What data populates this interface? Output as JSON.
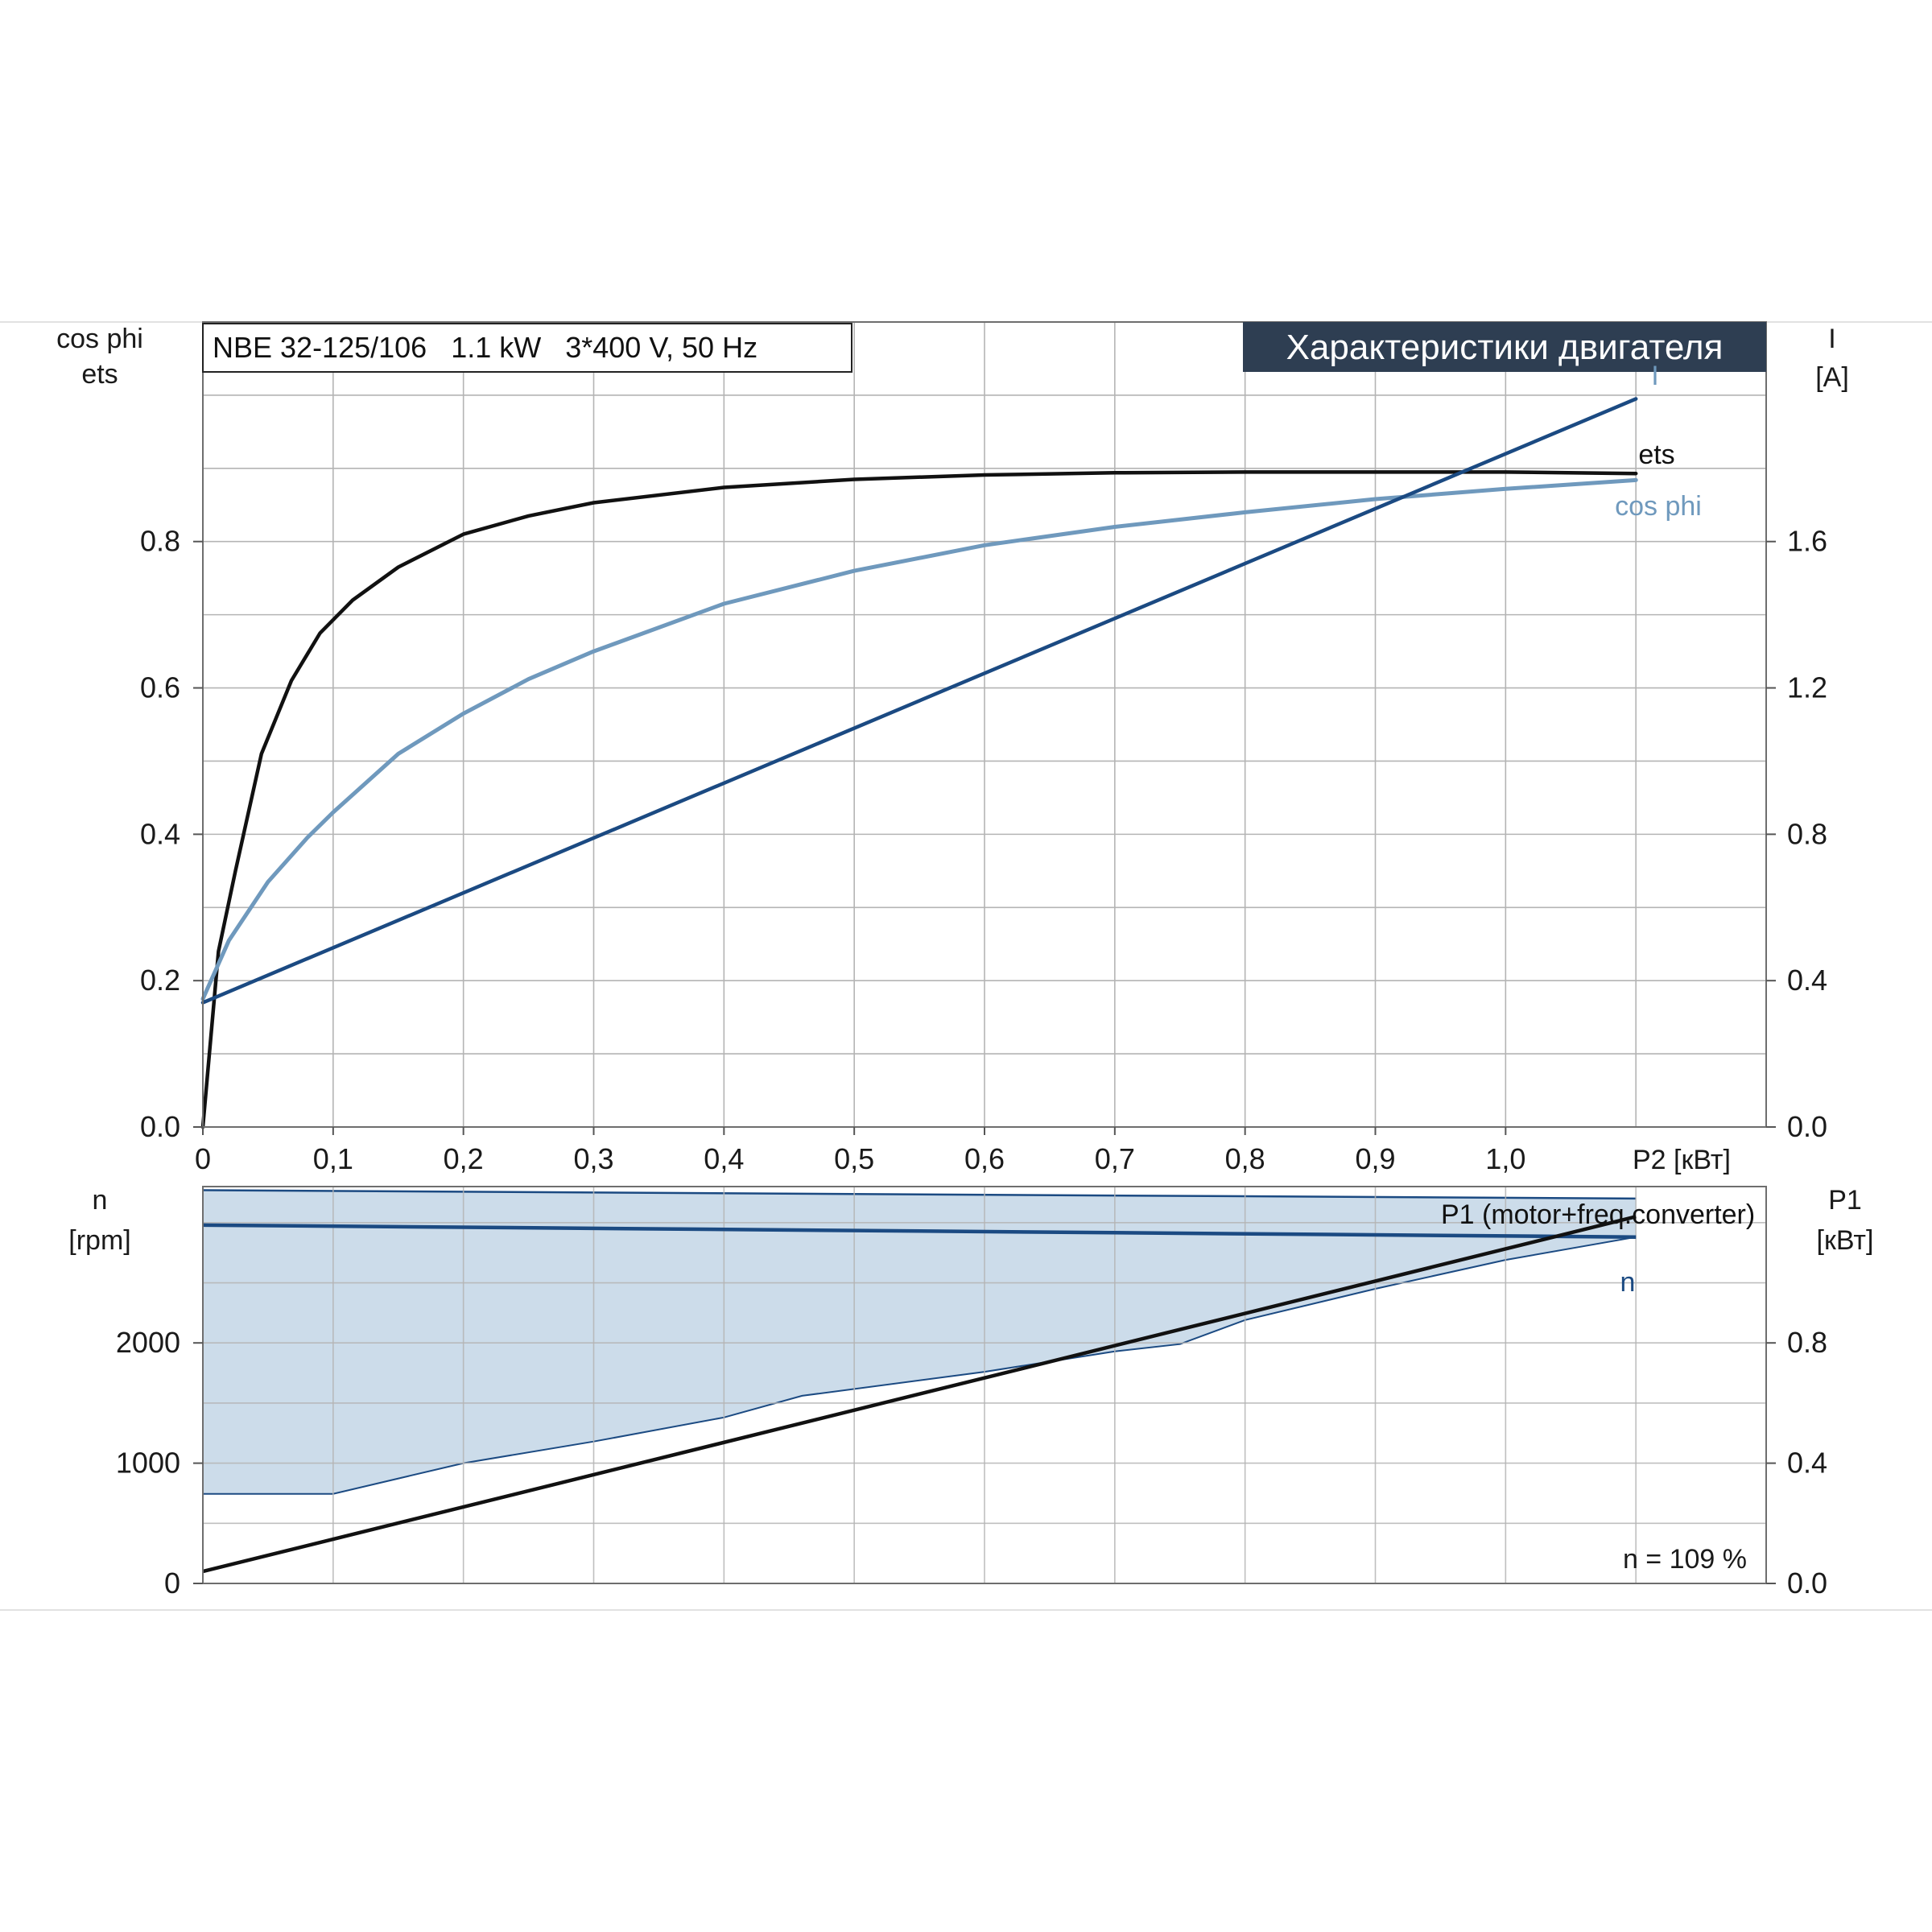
{
  "header": {
    "model_info": "NBE 32-125/106   1.1 kW   3*400 V, 50 Hz",
    "section_title": "Характеристики двигателя"
  },
  "colors": {
    "ets": "#111111",
    "cos_phi": "#6f99bd",
    "current": "#1b4a82",
    "speed": "#1b4a82",
    "speed_band": "#ccdcea",
    "p1": "#111111",
    "title_bg": "#2e3e52"
  },
  "chart_data": [
    {
      "type": "line",
      "xlabel": "P2 [кВт]",
      "xlim": [
        0,
        1.2
      ],
      "x_ticks": [
        "0",
        "0,1",
        "0,2",
        "0,3",
        "0,4",
        "0,5",
        "0,6",
        "0,7",
        "0,8",
        "0,9",
        "1,0"
      ],
      "y_left_label_1": "cos phi",
      "y_left_label_2": "ets",
      "y_left_lim": [
        0,
        1.1
      ],
      "y_left_ticks": [
        "0.0",
        "0.2",
        "0.4",
        "0.6",
        "0.8"
      ],
      "y_right_label_1": "I",
      "y_right_label_2": "[A]",
      "y_right_lim": [
        0,
        2.2
      ],
      "y_right_ticks": [
        "0.0",
        "0.4",
        "0.8",
        "1.2",
        "1.6"
      ],
      "grid": true,
      "series": [
        {
          "name": "ets",
          "axis": "left",
          "x": [
            0,
            0.012,
            0.025,
            0.045,
            0.068,
            0.09,
            0.115,
            0.15,
            0.2,
            0.25,
            0.3,
            0.4,
            0.5,
            0.6,
            0.7,
            0.8,
            0.9,
            1.0,
            1.1
          ],
          "y": [
            0.0,
            0.24,
            0.35,
            0.51,
            0.61,
            0.675,
            0.72,
            0.765,
            0.81,
            0.835,
            0.853,
            0.874,
            0.885,
            0.891,
            0.894,
            0.895,
            0.895,
            0.895,
            0.893
          ]
        },
        {
          "name": "cos phi",
          "axis": "left",
          "x": [
            0,
            0.02,
            0.05,
            0.08,
            0.1,
            0.15,
            0.2,
            0.25,
            0.3,
            0.4,
            0.5,
            0.6,
            0.7,
            0.8,
            0.9,
            1.0,
            1.1
          ],
          "y": [
            0.175,
            0.255,
            0.335,
            0.395,
            0.43,
            0.51,
            0.565,
            0.612,
            0.65,
            0.715,
            0.76,
            0.795,
            0.82,
            0.84,
            0.858,
            0.872,
            0.884
          ]
        },
        {
          "name": "I",
          "axis": "right",
          "x": [
            0,
            1.1
          ],
          "y": [
            0.34,
            1.99
          ]
        }
      ]
    },
    {
      "type": "line",
      "xlim": [
        0,
        1.2
      ],
      "y_left_label_1": "n",
      "y_left_label_2": "[rpm]",
      "y_left_lim": [
        0,
        3300
      ],
      "y_left_ticks": [
        "0",
        "1000",
        "2000"
      ],
      "y_right_label_1": "P1",
      "y_right_label_2": "[кВт]",
      "y_right_lim": [
        0,
        1.32
      ],
      "y_right_ticks": [
        "0.0",
        "0.4",
        "0.8"
      ],
      "grid": true,
      "annotation": "n = 109 %",
      "series": [
        {
          "name": "n",
          "axis": "left",
          "x": [
            0,
            1.1
          ],
          "y": [
            2980,
            2880
          ]
        },
        {
          "name": "P1 (motor+freq.converter)",
          "axis": "right",
          "x": [
            0,
            1.1
          ],
          "y": [
            0.04,
            1.22
          ]
        }
      ],
      "band": {
        "upper_x": [
          0,
          1.1
        ],
        "upper_y": [
          3270,
          3200
        ],
        "lower_x": [
          0,
          0.1,
          0.2,
          0.3,
          0.4,
          0.46,
          0.6,
          0.7,
          0.75,
          0.8,
          0.9,
          1.0,
          1.1
        ],
        "lower_y": [
          745,
          745,
          1000,
          1180,
          1380,
          1560,
          1760,
          1930,
          1990,
          2190,
          2450,
          2690,
          2880
        ]
      }
    }
  ]
}
